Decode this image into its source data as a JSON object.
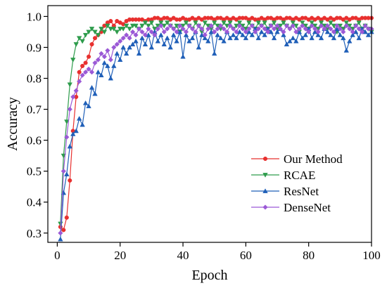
{
  "chart_data": {
    "type": "line",
    "xlabel": "Epoch",
    "ylabel": "Accuracy",
    "xlim": [
      -3,
      100
    ],
    "ylim": [
      0.27,
      1.035
    ],
    "xticks": [
      0,
      20,
      40,
      60,
      80,
      100
    ],
    "xtick_labels": [
      "0",
      "20",
      "40",
      "60",
      "80",
      "100"
    ],
    "yticks": [
      0.3,
      0.4,
      0.5,
      0.6,
      0.7,
      0.8,
      0.9,
      1.0
    ],
    "ytick_labels": [
      "0.3",
      "0.4",
      "0.5",
      "0.6",
      "0.7",
      "0.8",
      "0.9",
      "1.0"
    ],
    "grid": false,
    "legend_position": "bottom-right",
    "x": [
      1,
      2,
      3,
      4,
      5,
      6,
      7,
      8,
      9,
      10,
      11,
      12,
      13,
      14,
      15,
      16,
      17,
      18,
      19,
      20,
      21,
      22,
      23,
      24,
      25,
      26,
      27,
      28,
      29,
      30,
      31,
      32,
      33,
      34,
      35,
      36,
      37,
      38,
      39,
      40,
      41,
      42,
      43,
      44,
      45,
      46,
      47,
      48,
      49,
      50,
      51,
      52,
      53,
      54,
      55,
      56,
      57,
      58,
      59,
      60,
      61,
      62,
      63,
      64,
      65,
      66,
      67,
      68,
      69,
      70,
      71,
      72,
      73,
      74,
      75,
      76,
      77,
      78,
      79,
      80,
      81,
      82,
      83,
      84,
      85,
      86,
      87,
      88,
      89,
      90,
      91,
      92,
      93,
      94,
      95,
      96,
      97,
      98,
      99,
      100
    ],
    "series": [
      {
        "name": "Our Method",
        "color": "#e8302f",
        "marker": "circle",
        "values": [
          0.32,
          0.31,
          0.35,
          0.47,
          0.63,
          0.74,
          0.82,
          0.84,
          0.85,
          0.87,
          0.91,
          0.93,
          0.94,
          0.95,
          0.97,
          0.98,
          0.985,
          0.97,
          0.985,
          0.98,
          0.975,
          0.985,
          0.99,
          0.99,
          0.99,
          0.99,
          0.99,
          0.985,
          0.99,
          0.99,
          0.995,
          0.995,
          0.99,
          0.995,
          0.995,
          0.99,
          0.995,
          0.99,
          0.99,
          0.995,
          0.99,
          0.99,
          0.995,
          0.99,
          0.995,
          0.99,
          0.995,
          0.995,
          0.995,
          0.99,
          0.995,
          0.995,
          0.99,
          0.995,
          0.99,
          0.995,
          0.99,
          0.995,
          0.995,
          0.995,
          0.99,
          0.995,
          0.99,
          0.99,
          0.995,
          0.99,
          0.995,
          0.995,
          0.99,
          0.995,
          0.995,
          0.99,
          0.995,
          0.995,
          0.99,
          0.995,
          0.99,
          0.995,
          0.995,
          0.99,
          0.995,
          0.99,
          0.995,
          0.99,
          0.995,
          0.99,
          0.995,
          0.99,
          0.995,
          0.995,
          0.99,
          0.995,
          0.99,
          0.995,
          0.995,
          0.99,
          0.995,
          0.995,
          0.995,
          0.995
        ]
      },
      {
        "name": "RCAE",
        "color": "#2e9c4c",
        "marker": "triangle-down",
        "values": [
          0.33,
          0.55,
          0.66,
          0.78,
          0.86,
          0.91,
          0.93,
          0.92,
          0.94,
          0.95,
          0.96,
          0.95,
          0.94,
          0.96,
          0.95,
          0.97,
          0.96,
          0.96,
          0.95,
          0.96,
          0.96,
          0.97,
          0.96,
          0.97,
          0.97,
          0.96,
          0.97,
          0.98,
          0.97,
          0.98,
          0.96,
          0.97,
          0.98,
          0.97,
          0.98,
          0.97,
          0.96,
          0.97,
          0.95,
          0.97,
          0.98,
          0.97,
          0.96,
          0.98,
          0.97,
          0.95,
          0.98,
          0.97,
          0.96,
          0.98,
          0.97,
          0.96,
          0.98,
          0.97,
          0.98,
          0.96,
          0.97,
          0.98,
          0.97,
          0.96,
          0.98,
          0.97,
          0.96,
          0.98,
          0.97,
          0.98,
          0.96,
          0.97,
          0.98,
          0.96,
          0.97,
          0.98,
          0.97,
          0.96,
          0.98,
          0.97,
          0.95,
          0.98,
          0.97,
          0.96,
          0.98,
          0.97,
          0.96,
          0.98,
          0.97,
          0.96,
          0.98,
          0.97,
          0.95,
          0.97,
          0.96,
          0.98,
          0.97,
          0.96,
          0.97,
          0.98,
          0.96,
          0.97,
          0.96,
          0.95
        ]
      },
      {
        "name": "ResNet",
        "color": "#1f5fb8",
        "marker": "triangle-up",
        "values": [
          0.28,
          0.43,
          0.49,
          0.58,
          0.62,
          0.63,
          0.67,
          0.65,
          0.72,
          0.71,
          0.77,
          0.75,
          0.82,
          0.81,
          0.85,
          0.84,
          0.8,
          0.84,
          0.88,
          0.86,
          0.9,
          0.88,
          0.9,
          0.91,
          0.92,
          0.88,
          0.93,
          0.91,
          0.94,
          0.9,
          0.95,
          0.92,
          0.94,
          0.91,
          0.93,
          0.9,
          0.94,
          0.92,
          0.95,
          0.87,
          0.94,
          0.92,
          0.93,
          0.95,
          0.9,
          0.94,
          0.93,
          0.92,
          0.95,
          0.88,
          0.94,
          0.93,
          0.92,
          0.95,
          0.93,
          0.94,
          0.93,
          0.95,
          0.94,
          0.93,
          0.95,
          0.94,
          0.96,
          0.93,
          0.95,
          0.94,
          0.96,
          0.95,
          0.93,
          0.95,
          0.96,
          0.94,
          0.91,
          0.92,
          0.93,
          0.92,
          0.95,
          0.93,
          0.94,
          0.96,
          0.93,
          0.95,
          0.94,
          0.93,
          0.96,
          0.95,
          0.94,
          0.93,
          0.96,
          0.94,
          0.93,
          0.89,
          0.92,
          0.94,
          0.95,
          0.93,
          0.96,
          0.95,
          0.94,
          0.95
        ]
      },
      {
        "name": "DenseNet",
        "color": "#9b59d6",
        "marker": "diamond",
        "values": [
          0.3,
          0.5,
          0.61,
          0.7,
          0.74,
          0.76,
          0.79,
          0.81,
          0.82,
          0.83,
          0.82,
          0.85,
          0.86,
          0.88,
          0.87,
          0.89,
          0.86,
          0.9,
          0.91,
          0.92,
          0.93,
          0.94,
          0.93,
          0.95,
          0.94,
          0.96,
          0.95,
          0.94,
          0.96,
          0.95,
          0.94,
          0.96,
          0.97,
          0.95,
          0.96,
          0.97,
          0.96,
          0.95,
          0.97,
          0.96,
          0.95,
          0.97,
          0.96,
          0.95,
          0.97,
          0.96,
          0.94,
          0.96,
          0.97,
          0.95,
          0.96,
          0.97,
          0.96,
          0.95,
          0.97,
          0.96,
          0.95,
          0.97,
          0.96,
          0.95,
          0.96,
          0.97,
          0.95,
          0.96,
          0.97,
          0.96,
          0.95,
          0.97,
          0.96,
          0.97,
          0.96,
          0.95,
          0.97,
          0.96,
          0.97,
          0.95,
          0.96,
          0.97,
          0.96,
          0.95,
          0.97,
          0.96,
          0.95,
          0.97,
          0.96,
          0.97,
          0.96,
          0.95,
          0.97,
          0.96,
          0.95,
          0.97,
          0.96,
          0.95,
          0.97,
          0.96,
          0.95,
          0.97,
          0.96,
          0.96
        ]
      }
    ]
  }
}
